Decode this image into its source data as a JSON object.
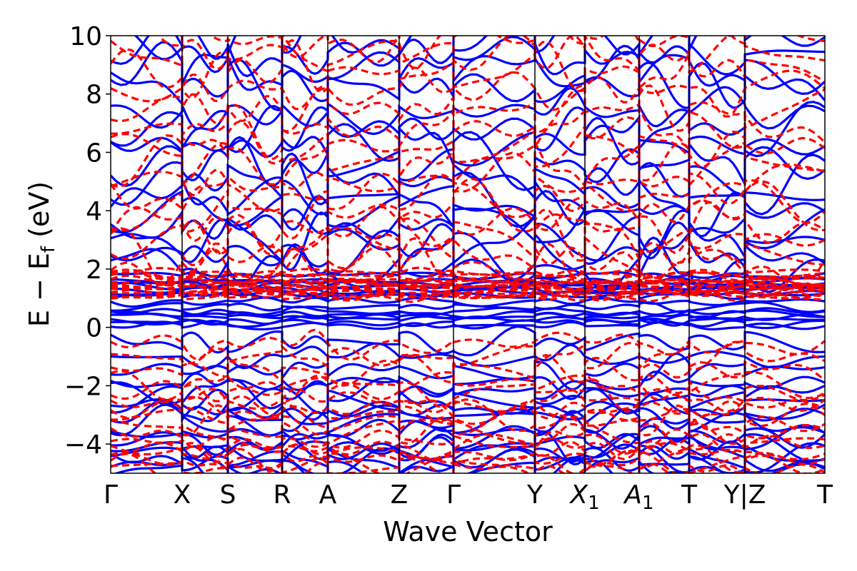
{
  "chart_data": {
    "type": "line",
    "title": "",
    "xlabel": "Wave Vector",
    "ylabel": "E − E_f (eV)",
    "ylabel_parts": {
      "prefix": "E − E",
      "subscript": "f",
      "suffix": " (eV)"
    },
    "ylim": [
      -5,
      10
    ],
    "xlim": [
      0,
      1
    ],
    "grid": false,
    "legend": "none",
    "y_ticks": [
      -4,
      -2,
      0,
      2,
      4,
      6,
      8,
      10
    ],
    "y_tick_labels": [
      "−4",
      "−2",
      "0",
      "2",
      "4",
      "6",
      "8",
      "10"
    ],
    "k_points": [
      {
        "label": "Γ",
        "x": 0.0
      },
      {
        "label": "X",
        "x": 0.1
      },
      {
        "label": "S",
        "x": 0.164
      },
      {
        "label": "R",
        "x": 0.24
      },
      {
        "label": "A",
        "x": 0.304
      },
      {
        "label": "Z",
        "x": 0.404
      },
      {
        "label": "Γ",
        "x": 0.48
      },
      {
        "label": "Y",
        "x": 0.594
      },
      {
        "label": "X",
        "sub": "1",
        "italic": true,
        "x": 0.664
      },
      {
        "label": "A",
        "sub": "1",
        "italic": true,
        "x": 0.74
      },
      {
        "label": "T",
        "x": 0.81
      },
      {
        "label": "Y|Z",
        "x": 0.888
      },
      {
        "label": "T",
        "x": 1.0
      }
    ],
    "series": [
      {
        "style": "solid",
        "color": "#0000ff",
        "band_count": 46
      },
      {
        "style": "dashed",
        "color": "#ff0000",
        "band_count": 46
      }
    ]
  }
}
